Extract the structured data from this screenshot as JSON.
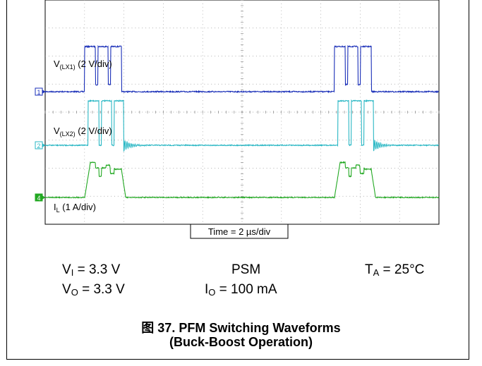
{
  "chart_data": {
    "type": "line",
    "grid": true,
    "xlabel": "Time = 2 µs/div",
    "channels": [
      {
        "marker": "1",
        "name_main": "V",
        "name_sub": "(LX1)",
        "scale": " (2 V/div)",
        "color": "#1a2fb8"
      },
      {
        "marker": "2",
        "name_main": "V",
        "name_sub": "(LX2)",
        "scale": " (2 V/div)",
        "color": "#2ab7c4"
      },
      {
        "marker": "4",
        "name_main": "I",
        "name_sub": "L",
        "scale": " (1 A/div)",
        "color": "#22a822"
      }
    ]
  },
  "conditions": {
    "vi": {
      "main": "V",
      "sub": "I",
      "value": " = 3.3 V"
    },
    "vo": {
      "main": "V",
      "sub": "O",
      "value": " = 3.3 V"
    },
    "mode": "PSM",
    "io": {
      "main": "I",
      "sub": "O",
      "value": " = 100 mA"
    },
    "ta": {
      "main": "T",
      "sub": "A",
      "value": " = 25°C"
    }
  },
  "caption": {
    "line1": "图 37. PFM Switching Waveforms",
    "line2": "(Buck-Boost Operation)"
  }
}
